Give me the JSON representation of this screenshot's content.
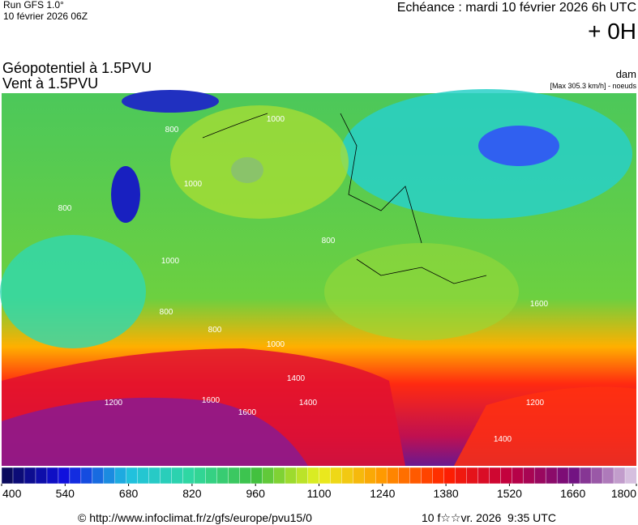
{
  "header": {
    "run": "Run GFS 1.0°",
    "run_date": "10 février 2026 06Z",
    "forecast": "Echéance : mardi 10 février 2026 6h UTC",
    "lead": "+ 0H"
  },
  "fields": {
    "primary": "Géopotentiel à 1.5PVU",
    "secondary": "Vent à 1.5PVU",
    "unit": "dam",
    "wind_note": "[Max 305.3 km/h] - noeuds"
  },
  "contour_labels": [
    "800",
    "1000",
    "1000",
    "800",
    "1000",
    "800",
    "800",
    "800",
    "1000",
    "1400",
    "1600",
    "1400",
    "1600",
    "1200",
    "1400",
    "1200",
    "1600"
  ],
  "colorbar": {
    "range": [
      400,
      1800
    ],
    "ticks": [
      400,
      540,
      680,
      820,
      960,
      1100,
      1240,
      1380,
      1520,
      1660,
      1800
    ]
  },
  "footer": {
    "source": "© http://www.infoclimat.fr/z/gfs/europe/pvu15/0",
    "generated": "10 f☆☆vr. 2026  9:35 UTC"
  }
}
